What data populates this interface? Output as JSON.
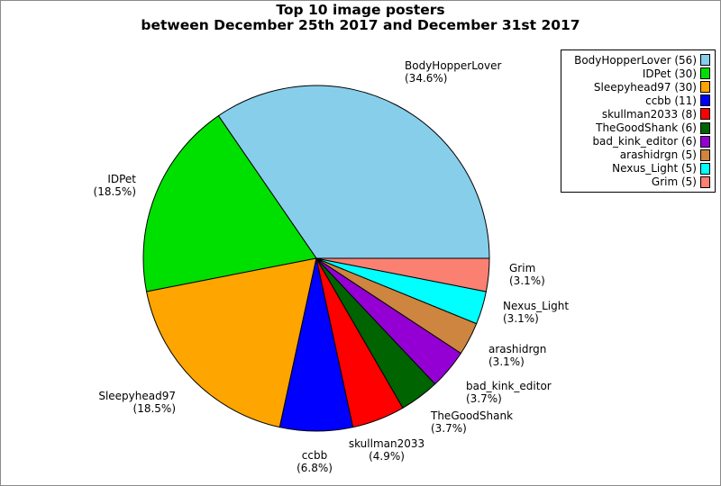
{
  "figure": {
    "title_line1": "Top 10 image posters",
    "title_line2": "between December 25th 2017 and December 31st 2017",
    "background_color": "#ffffff",
    "border_color": "#8a8a8a"
  },
  "chart_data": {
    "type": "pie",
    "title": "Top 10 image posters between December 25th 2017 and December 31st 2017",
    "total": 162,
    "start_angle_deg": 0,
    "direction": "counterclockwise",
    "wedge_edge_color": "#000000",
    "legend_position": "upper right",
    "slices": [
      {
        "name": "BodyHopperLover",
        "value": 56,
        "pct": 34.6,
        "pct_label": "(34.6%)",
        "legend_label": "BodyHopperLover (56)",
        "color": "#87CEEB"
      },
      {
        "name": "IDPet",
        "value": 30,
        "pct": 18.5,
        "pct_label": "(18.5%)",
        "legend_label": "IDPet (30)",
        "color": "#00E000"
      },
      {
        "name": "Sleepyhead97",
        "value": 30,
        "pct": 18.5,
        "pct_label": "(18.5%)",
        "legend_label": "Sleepyhead97 (30)",
        "color": "#FFA500"
      },
      {
        "name": "ccbb",
        "value": 11,
        "pct": 6.8,
        "pct_label": "(6.8%)",
        "legend_label": "ccbb (11)",
        "color": "#0000FF"
      },
      {
        "name": "skullman2033",
        "value": 8,
        "pct": 4.9,
        "pct_label": "(4.9%)",
        "legend_label": "skullman2033 (8)",
        "color": "#FF0000"
      },
      {
        "name": "TheGoodShank",
        "value": 6,
        "pct": 3.7,
        "pct_label": "(3.7%)",
        "legend_label": "TheGoodShank (6)",
        "color": "#006400"
      },
      {
        "name": "bad_kink_editor",
        "value": 6,
        "pct": 3.7,
        "pct_label": "(3.7%)",
        "legend_label": "bad_kink_editor (6)",
        "color": "#9400D3"
      },
      {
        "name": "arashidrgn",
        "value": 5,
        "pct": 3.1,
        "pct_label": "(3.1%)",
        "legend_label": "arashidrgn (5)",
        "color": "#CD853F"
      },
      {
        "name": "Nexus_Light",
        "value": 5,
        "pct": 3.1,
        "pct_label": "(3.1%)",
        "legend_label": "Nexus_Light (5)",
        "color": "#00FFFF"
      },
      {
        "name": "Grim",
        "value": 5,
        "pct": 3.1,
        "pct_label": "(3.1%)",
        "legend_label": "Grim (5)",
        "color": "#FA8072"
      }
    ]
  }
}
